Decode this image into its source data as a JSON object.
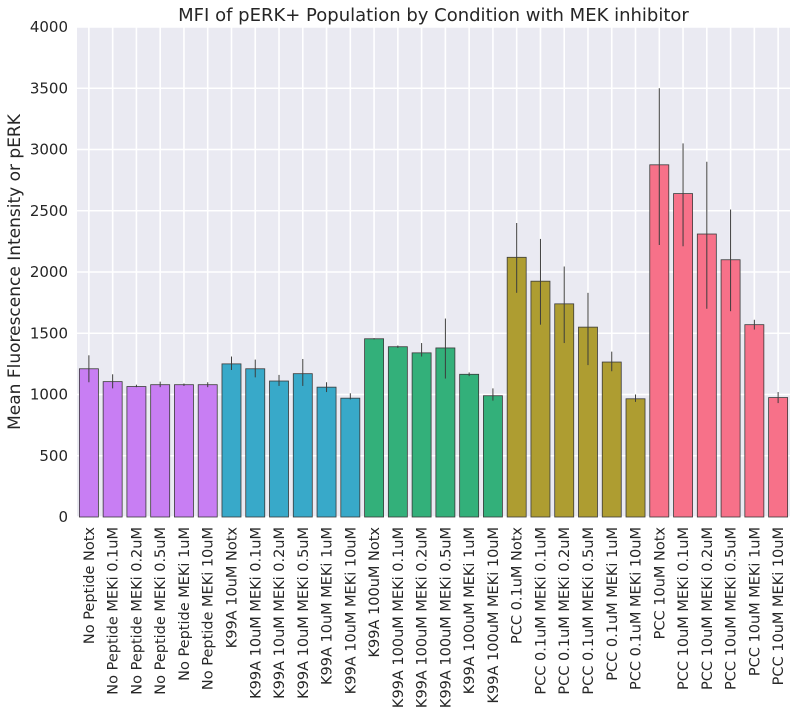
{
  "chart_data": {
    "type": "bar",
    "title": "MFI of pERK+ Population by Condition with MEK inhibitor",
    "xlabel": "",
    "ylabel": "Mean Fluorescence Intensity or pERK",
    "ylim": [
      0,
      4000
    ],
    "yticks": [
      0,
      500,
      1000,
      1500,
      2000,
      2500,
      3000,
      3500,
      4000
    ],
    "grid": true,
    "categories": [
      "No Peptide Notx",
      "No Peptide MEKi 0.1uM",
      "No Peptide MEKi 0.2uM",
      "No Peptide MEKi 0.5uM",
      "No Peptide MEKi 1uM",
      "No Peptide MEKi 10uM",
      "K99A 10uM Notx",
      "K99A 10uM MEKi 0.1uM",
      "K99A 10uM MEKi 0.2uM",
      "K99A 10uM MEKi 0.5uM",
      "K99A 10uM MEKi 1uM",
      "K99A 10uM MEKi 10uM",
      "K99A 100uM Notx",
      "K99A 100uM MEKi 0.1uM",
      "K99A 100uM MEKi 0.2uM",
      "K99A 100uM MEKi 0.5uM",
      "K99A 100uM MEKi 1uM",
      "K99A 100uM MEKi 10uM",
      "PCC 0.1uM Notx",
      "PCC 0.1uM MEKi 0.1uM",
      "PCC 0.1uM MEKi 0.2uM",
      "PCC 0.1uM MEKi 0.5uM",
      "PCC 0.1uM MEKi 1uM",
      "PCC 0.1uM MEKi 10uM",
      "PCC 10uM Notx",
      "PCC 10uM MEKi 0.1uM",
      "PCC 10uM MEKi 0.2uM",
      "PCC 10uM MEKi 0.5uM",
      "PCC 10uM MEKi 1uM",
      "PCC 10uM MEKi 10uM"
    ],
    "values": [
      1210,
      1105,
      1065,
      1080,
      1080,
      1080,
      1250,
      1210,
      1110,
      1170,
      1060,
      970,
      1455,
      1390,
      1340,
      1380,
      1165,
      990,
      2120,
      1925,
      1740,
      1550,
      1265,
      965,
      2875,
      2640,
      2310,
      2100,
      1570,
      975
    ],
    "error_low": [
      1100,
      1050,
      1060,
      1060,
      1070,
      1060,
      1200,
      1140,
      1070,
      1070,
      1020,
      960,
      1450,
      1380,
      1310,
      1130,
      1150,
      950,
      1830,
      1570,
      1420,
      1240,
      1190,
      940,
      2220,
      2210,
      1700,
      1680,
      1530,
      930
    ],
    "error_high": [
      1320,
      1165,
      1080,
      1105,
      1090,
      1100,
      1310,
      1285,
      1160,
      1290,
      1100,
      1010,
      1460,
      1400,
      1420,
      1620,
      1180,
      1050,
      2400,
      2270,
      2045,
      1830,
      1350,
      1000,
      3500,
      3050,
      2900,
      2510,
      1610,
      1020
    ],
    "bar_colors": [
      "#c87ef3",
      "#c87ef3",
      "#c87ef3",
      "#c87ef3",
      "#c87ef3",
      "#c87ef3",
      "#38a9c9",
      "#38a9c9",
      "#38a9c9",
      "#38a9c9",
      "#38a9c9",
      "#38a9c9",
      "#33b07a",
      "#33b07a",
      "#33b07a",
      "#33b07a",
      "#33b07a",
      "#33b07a",
      "#ae9d31",
      "#ae9d31",
      "#ae9d31",
      "#ae9d31",
      "#ae9d31",
      "#ae9d31",
      "#f77189",
      "#f77189",
      "#f77189",
      "#f77189",
      "#f77189",
      "#f77189"
    ],
    "plot_background": "#eaeaf2",
    "grid_color": "#ffffff"
  }
}
